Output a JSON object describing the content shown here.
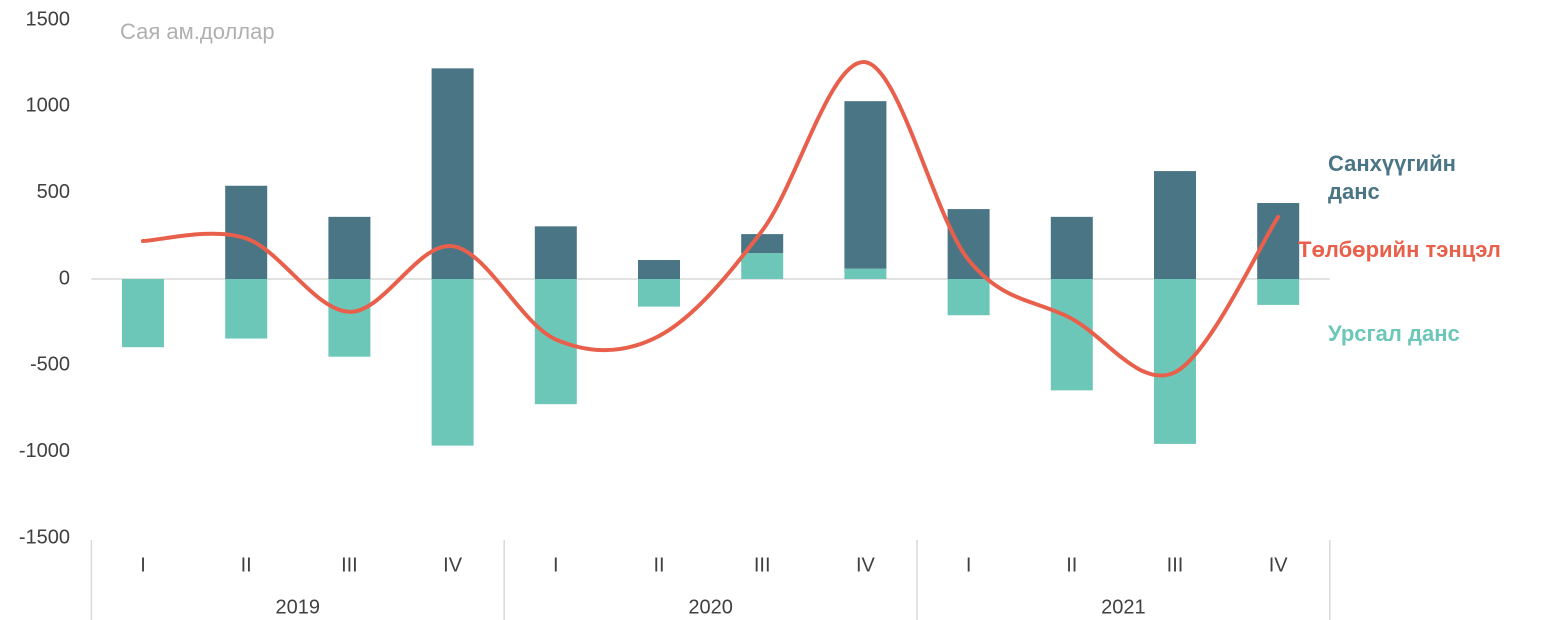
{
  "chart_data": {
    "type": "bar",
    "y_label": "Сая ам.доллар",
    "categories": [
      "I",
      "II",
      "III",
      "IV",
      "I",
      "II",
      "III",
      "IV",
      "I",
      "II",
      "III",
      "IV"
    ],
    "groups": [
      "2019",
      "2020",
      "2021"
    ],
    "ylim": [
      -1500,
      1500
    ],
    "yticks": [
      -1500,
      -1000,
      -500,
      0,
      500,
      1000,
      1500
    ],
    "series": [
      {
        "name": "Урсгал данс",
        "type": "bar",
        "color": "#6dc7b9",
        "values": [
          -395,
          -345,
          -450,
          -965,
          -725,
          -160,
          150,
          60,
          -210,
          -645,
          -955,
          -150
        ]
      },
      {
        "name": "Санхүүгийн данс",
        "type": "bar",
        "color": "#4a7585",
        "values": [
          0,
          540,
          360,
          1220,
          305,
          110,
          110,
          970,
          405,
          360,
          625,
          440
        ]
      },
      {
        "name": "Төлбөрийн тэнцэл",
        "type": "line",
        "color": "#e8604c",
        "values": [
          220,
          235,
          -190,
          190,
          -350,
          -330,
          280,
          1256,
          110,
          -230,
          -540,
          360
        ]
      }
    ]
  }
}
